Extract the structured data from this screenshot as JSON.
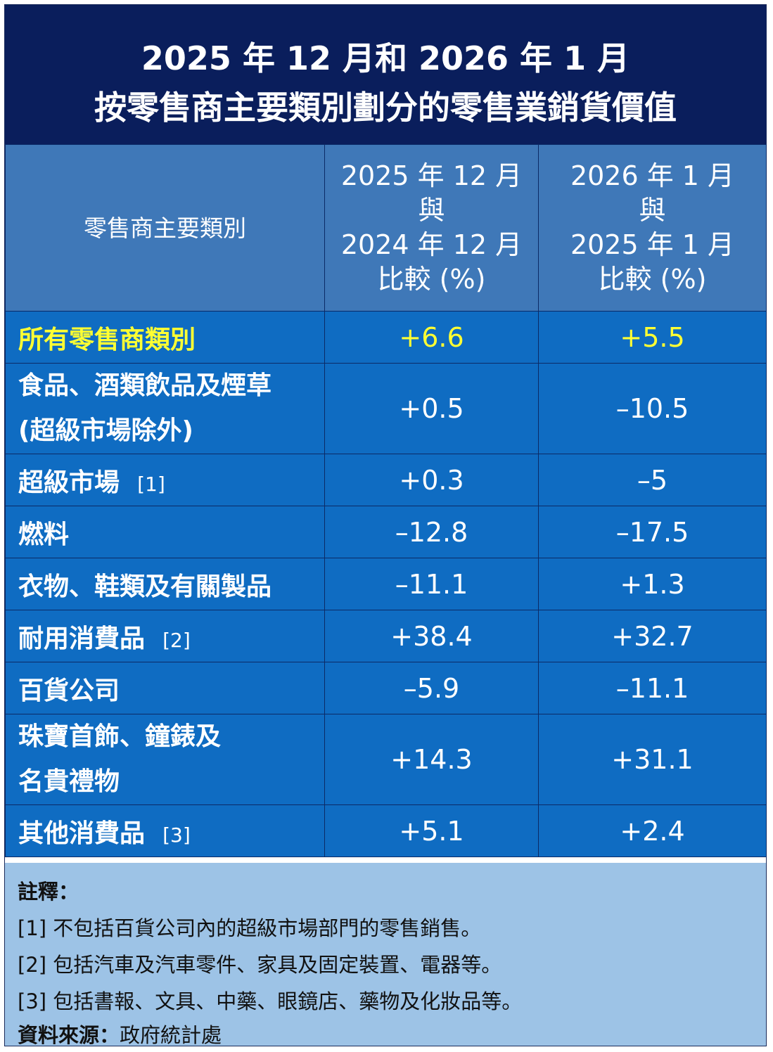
{
  "title": {
    "line1": "2025 年 12 月和 2026 年 1 月",
    "line2": "按零售商主要類別劃分的零售業銷貨價值"
  },
  "header": {
    "category": "零售商主要類別",
    "col1": [
      "2025 年 12 月",
      "與",
      "2024 年 12 月",
      "比較 (%)"
    ],
    "col2": [
      "2026 年 1 月",
      "與",
      "2025 年 1 月",
      "比較 (%)"
    ]
  },
  "rows": [
    {
      "name": [
        "所有零售商類別"
      ],
      "note": "",
      "v1": "+6.6",
      "v2": "+5.5"
    },
    {
      "name": [
        "食品、酒類飲品及煙草",
        "(超級市場除外)"
      ],
      "note": "",
      "v1": "+0.5",
      "v2": "–10.5"
    },
    {
      "name": [
        "超級市場"
      ],
      "note": "[1]",
      "v1": "+0.3",
      "v2": "–5"
    },
    {
      "name": [
        "燃料"
      ],
      "note": "",
      "v1": "–12.8",
      "v2": "–17.5"
    },
    {
      "name": [
        "衣物、鞋類及有關製品"
      ],
      "note": "",
      "v1": "–11.1",
      "v2": "+1.3"
    },
    {
      "name": [
        "耐用消費品"
      ],
      "note": "[2]",
      "v1": "+38.4",
      "v2": "+32.7"
    },
    {
      "name": [
        "百貨公司"
      ],
      "note": "",
      "v1": "–5.9",
      "v2": "–11.1"
    },
    {
      "name": [
        "珠寶首飾、鐘錶及",
        "名貴禮物"
      ],
      "note": "",
      "v1": "+14.3",
      "v2": "+31.1"
    },
    {
      "name": [
        "其他消費品"
      ],
      "note": "[3]",
      "v1": "+5.1",
      "v2": "+2.4"
    }
  ],
  "notes": {
    "heading": "註釋：",
    "items": [
      "[1]  不包括百貨公司內的超級市場部門的零售銷售。",
      "[2]  包括汽車及汽車零件、家具及固定裝置、電器等。",
      "[3]  包括書報、文具、中藥、眼鏡店、藥物及化妝品等。"
    ],
    "source_label": "資料來源：",
    "source_value": "政府統計處"
  },
  "colors": {
    "title_bg": "#0a1e5c",
    "header_bg": "#3f78b8",
    "row_bg": "#0f6cc2",
    "highlight_text": "#ffff33",
    "footer_bg": "#9dc3e6"
  }
}
